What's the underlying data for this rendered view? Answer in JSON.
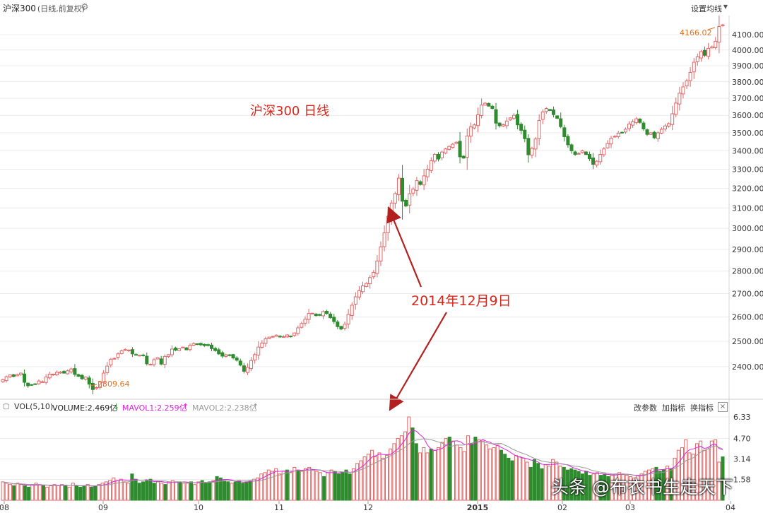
{
  "header": {
    "symbol": "沪深300",
    "subtitle": "(日线,前复权)",
    "settings_label": "设置均线"
  },
  "chart_title": "沪深300  日线",
  "annotation": {
    "label": "2014年12月9日"
  },
  "price_marks": {
    "high_label": "4166.02",
    "low_label": "2309.64"
  },
  "volume_bar": {
    "vol_label": "VOL(5,10)",
    "volume_text": "VOLUME:2.469亿",
    "volume_arrow": "↓",
    "mavol1_text": "MAVOL1:2.259亿",
    "mavol1_arrow": "↑",
    "mavol2_text": "MAVOL2:2.238亿",
    "mavol2_arrow": "↑",
    "btn_params": "改参数",
    "btn_add": "加指标",
    "btn_switch": "换指标",
    "close": "×"
  },
  "watermark": "头条 @布衣书生走天下",
  "colors": {
    "up": "#e06666",
    "down": "#2e8b2e",
    "accent_red": "#d9261c",
    "mavol1": "#e020e0",
    "mavol2": "#999999",
    "orange": "#e07020"
  },
  "chart_data": [
    {
      "type": "candlestick",
      "title": "沪深300  日线",
      "x_tick_labels": [
        "08",
        "09",
        "10",
        "11",
        "12",
        "2015",
        "02",
        "03",
        "04"
      ],
      "yticks": [
        2400,
        2500,
        2600,
        2700,
        2800,
        2900,
        3000,
        3100,
        3200,
        3300,
        3400,
        3500,
        3600,
        3700,
        3800,
        3900,
        4000,
        4100
      ],
      "ylim": [
        2290,
        4200
      ],
      "scale": "log",
      "grid": true,
      "annotations": [
        {
          "text": "4166.02",
          "value": 4166.02
        },
        {
          "text": "2309.64",
          "value": 2309.64
        },
        {
          "text": "2014年12月9日",
          "value": 2014.0
        }
      ],
      "closes": [
        2350,
        2361,
        2368,
        2362,
        2369,
        2375,
        2340,
        2327,
        2330,
        2334,
        2345,
        2342,
        2360,
        2371,
        2371,
        2378,
        2379,
        2375,
        2384,
        2391,
        2370,
        2363,
        2354,
        2360,
        2333,
        2313,
        2320,
        2341,
        2375,
        2402,
        2429,
        2432,
        2450,
        2462,
        2467,
        2465,
        2450,
        2446,
        2445,
        2444,
        2411,
        2409,
        2427,
        2435,
        2410,
        2440,
        2447,
        2469,
        2465,
        2470,
        2477,
        2466,
        2484,
        2491,
        2490,
        2486,
        2483,
        2483,
        2471,
        2463,
        2450,
        2441,
        2446,
        2445,
        2434,
        2425,
        2406,
        2382,
        2397,
        2424,
        2447,
        2477,
        2493,
        2510,
        2517,
        2520,
        2525,
        2518,
        2519,
        2526,
        2520,
        2534,
        2555,
        2573,
        2591,
        2615,
        2616,
        2606,
        2607,
        2623,
        2615,
        2597,
        2581,
        2560,
        2550,
        2570,
        2611,
        2650,
        2686,
        2713,
        2734,
        2745,
        2771,
        2794,
        2846,
        2912,
        2978,
        3058,
        3125,
        3173,
        3253,
        3134,
        3110,
        3172,
        3196,
        3240,
        3220,
        3265,
        3300,
        3346,
        3380,
        3355,
        3393,
        3410,
        3424,
        3436,
        3447,
        3367,
        3360,
        3482,
        3533,
        3545,
        3603,
        3660,
        3671,
        3654,
        3640,
        3555,
        3540,
        3546,
        3567,
        3585,
        3600,
        3545,
        3514,
        3467,
        3378,
        3413,
        3465,
        3570,
        3620,
        3640,
        3628,
        3604,
        3583,
        3535,
        3478,
        3433,
        3400,
        3380,
        3385,
        3400,
        3380,
        3357,
        3326,
        3343,
        3380,
        3410,
        3440,
        3470,
        3480,
        3498,
        3500,
        3520,
        3550,
        3563,
        3580,
        3559,
        3522,
        3491,
        3500,
        3472,
        3500,
        3520,
        3539,
        3552,
        3609,
        3672,
        3731,
        3769,
        3806,
        3858,
        3922,
        3957,
        3990,
        3966,
        4011,
        4020,
        4057,
        4155,
        4166
      ]
    },
    {
      "type": "bar",
      "title": "VOL(5,10)",
      "yticks": [
        1.58,
        3.14,
        4.7,
        6.33
      ],
      "ylim": [
        0,
        6.6
      ],
      "series": [
        {
          "name": "VOLUME",
          "values": [
            1.4,
            1.3,
            1.2,
            1.1,
            1.3,
            1.2,
            1.1,
            1.0,
            1.2,
            1.3,
            1.2,
            1.1,
            1.0,
            1.1,
            1.2,
            1.1,
            1.2,
            1.1,
            1.0,
            1.3,
            1.1,
            1.0,
            1.1,
            1.2,
            1.0,
            1.1,
            1.2,
            1.3,
            1.4,
            1.5,
            1.7,
            1.5,
            1.6,
            1.4,
            1.3,
            2.0,
            1.6,
            1.3,
            1.4,
            1.5,
            1.6,
            1.3,
            1.4,
            1.3,
            1.2,
            1.4,
            1.5,
            1.4,
            1.4,
            1.3,
            1.3,
            1.4,
            1.2,
            1.4,
            1.5,
            1.3,
            1.4,
            1.5,
            1.8,
            1.7,
            1.5,
            1.4,
            1.3,
            1.4,
            1.5,
            1.3,
            1.4,
            1.5,
            1.6,
            1.7,
            2.0,
            2.1,
            2.3,
            2.2,
            2.4,
            2.0,
            2.2,
            2.3,
            2.1,
            2.5,
            2.3,
            2.2,
            2.4,
            2.5,
            2.3,
            2.2,
            2.1,
            1.8,
            2.1,
            2.3,
            2.2,
            2.0,
            2.1,
            2.3,
            2.0,
            2.4,
            2.8,
            3.0,
            3.3,
            3.5,
            3.8,
            3.3,
            3.6,
            3.2,
            3.4,
            3.9,
            4.3,
            4.7,
            4.9,
            5.2,
            6.33,
            5.5,
            4.3,
            3.6,
            4.0,
            3.6,
            3.9,
            3.8,
            4.0,
            4.4,
            4.7,
            4.8,
            4.5,
            4.2,
            4.0,
            3.7,
            4.9,
            4.3,
            4.8,
            4.6,
            4.5,
            4.2,
            3.9,
            4.0,
            4.2,
            3.8,
            3.5,
            3.2,
            3.0,
            3.4,
            3.3,
            3.2,
            2.9,
            2.5,
            3.1,
            2.8,
            2.4,
            2.7,
            2.6,
            3.1,
            2.9,
            2.6,
            2.5,
            2.3,
            2.4,
            2.3,
            2.2,
            2.0,
            2.2,
            1.9,
            2.0,
            2.1,
            1.9,
            2.0,
            1.8,
            1.9,
            2.0,
            2.1,
            2.0,
            1.9,
            1.8,
            1.7,
            1.9,
            2.0,
            2.2,
            2.3,
            2.4,
            2.5,
            2.2,
            2.3,
            2.6,
            2.4,
            3.2,
            3.8,
            4.0,
            4.6,
            3.6,
            3.5,
            4.3,
            4.5,
            3.8,
            3.9,
            4.5,
            4.6,
            2.9,
            3.3
          ]
        },
        {
          "name": "MAVOL1",
          "values": []
        },
        {
          "name": "MAVOL2",
          "values": []
        }
      ]
    }
  ]
}
